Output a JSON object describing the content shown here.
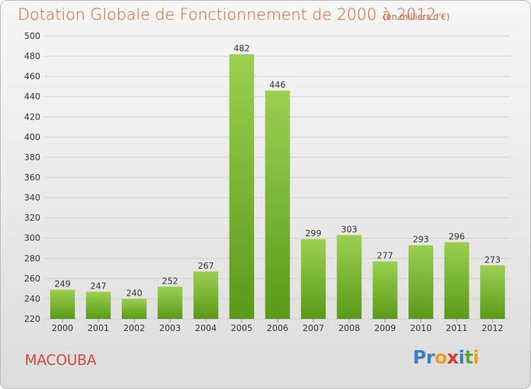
{
  "title": "Dotation Globale de Fonctionnement de 2000 à 2012",
  "unit_label": "(en milliers d'€)",
  "location": "MACOUBA",
  "brand": {
    "letters": [
      "P",
      "r",
      "o",
      "x",
      "i",
      "t",
      "i"
    ],
    "colors": [
      "#3c7dc4",
      "#3c7dc4",
      "#f29a1e",
      "#d83a2b",
      "#3c7dc4",
      "#57a83a",
      "#f29a1e"
    ]
  },
  "colors": {
    "title": "#d85b2a",
    "bar_top": "#9bd04f",
    "bar_bottom": "#5a9a18",
    "grid": "#cfcfcf",
    "axis_text": "#333333"
  },
  "chart_data": {
    "type": "bar",
    "title": "Dotation Globale de Fonctionnement de 2000 à 2012",
    "subtitle": "(en milliers d'€)",
    "xlabel": "",
    "ylabel": "",
    "categories": [
      "2000",
      "2001",
      "2002",
      "2003",
      "2004",
      "2005",
      "2006",
      "2007",
      "2008",
      "2009",
      "2010",
      "2011",
      "2012"
    ],
    "values": [
      249,
      247,
      240,
      252,
      267,
      482,
      446,
      299,
      303,
      277,
      293,
      296,
      273
    ],
    "ylim": [
      220,
      500
    ],
    "yticks": [
      220,
      240,
      260,
      280,
      300,
      320,
      340,
      360,
      380,
      400,
      420,
      440,
      460,
      480,
      500
    ],
    "grid": true,
    "legend": "none"
  }
}
